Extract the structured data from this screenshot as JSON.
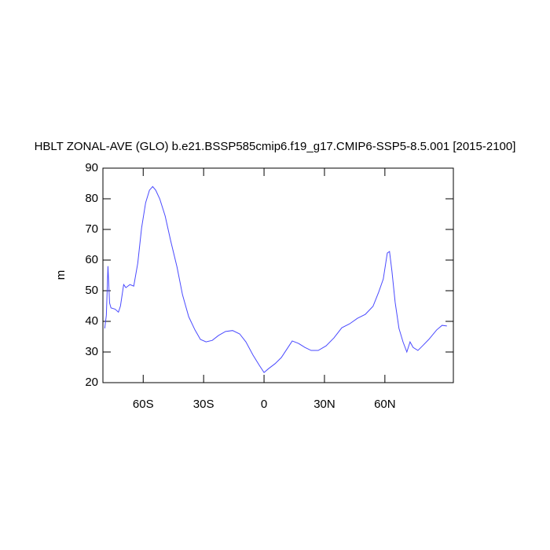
{
  "chart_data": {
    "type": "line",
    "title": "HBLT ZONAL-AVE (GLO) b.e21.BSSP585cmip6.f19_g17.CMIP6-SSP5-8.5.001 [2015-2100]",
    "y_label": "m",
    "x": [
      -79.1,
      -78.3,
      -77.5,
      -76.7,
      -76,
      -74,
      -72.3,
      -71.3,
      -69.7,
      -68.6,
      -66.6,
      -64.7,
      -62.7,
      -60.8,
      -58.8,
      -56.9,
      -55.3,
      -53.8,
      -51.8,
      -49.1,
      -46.4,
      -43.2,
      -40.5,
      -37.4,
      -34.3,
      -31.6,
      -28.8,
      -25.7,
      -22.6,
      -19.1,
      -15.6,
      -12.1,
      -9,
      -5.5,
      -2.3,
      0,
      2.3,
      5.5,
      8.6,
      11.7,
      14,
      17.1,
      20.3,
      23.4,
      26.9,
      30.8,
      34.7,
      38.6,
      42.5,
      46.4,
      50.3,
      54.1,
      56.9,
      59.2,
      61.2,
      62.3,
      63.5,
      65.1,
      67,
      69,
      70.9,
      72.5,
      74,
      76.4,
      78.7,
      81.8,
      85.7,
      88.4,
      90.8
    ],
    "series": [
      {
        "color": "#4a4aff",
        "values": [
          37.7,
          42,
          58,
          46,
          44.4,
          44,
          43,
          45,
          52,
          51,
          52,
          51.5,
          59,
          70.5,
          78.7,
          82.8,
          84,
          82.8,
          80,
          74.4,
          66.4,
          57.7,
          48.7,
          41.5,
          37.2,
          34.1,
          33.3,
          33.8,
          35.4,
          36.7,
          37,
          35.9,
          33.3,
          29,
          25.6,
          23.3,
          24.6,
          26.2,
          28.2,
          31.3,
          33.6,
          32.8,
          31.5,
          30.5,
          30.5,
          32,
          34.6,
          37.9,
          39.2,
          41,
          42.3,
          44.9,
          49.5,
          53.8,
          62.3,
          62.8,
          56.4,
          46.2,
          37.7,
          33.3,
          30,
          33.3,
          31.5,
          30.5,
          32,
          34.1,
          37.2,
          38.7,
          38.5
        ]
      }
    ],
    "xlim": [
      -80,
      94
    ],
    "xticks": [
      {
        "value": -60,
        "label": "60S"
      },
      {
        "value": -30,
        "label": "30S"
      },
      0,
      {
        "value": 30,
        "label": "30N"
      },
      {
        "value": 60,
        "label": "60N"
      }
    ],
    "ylim": [
      20,
      90
    ],
    "yticks": [
      20,
      30,
      40,
      50,
      60,
      70,
      80,
      90
    ]
  }
}
